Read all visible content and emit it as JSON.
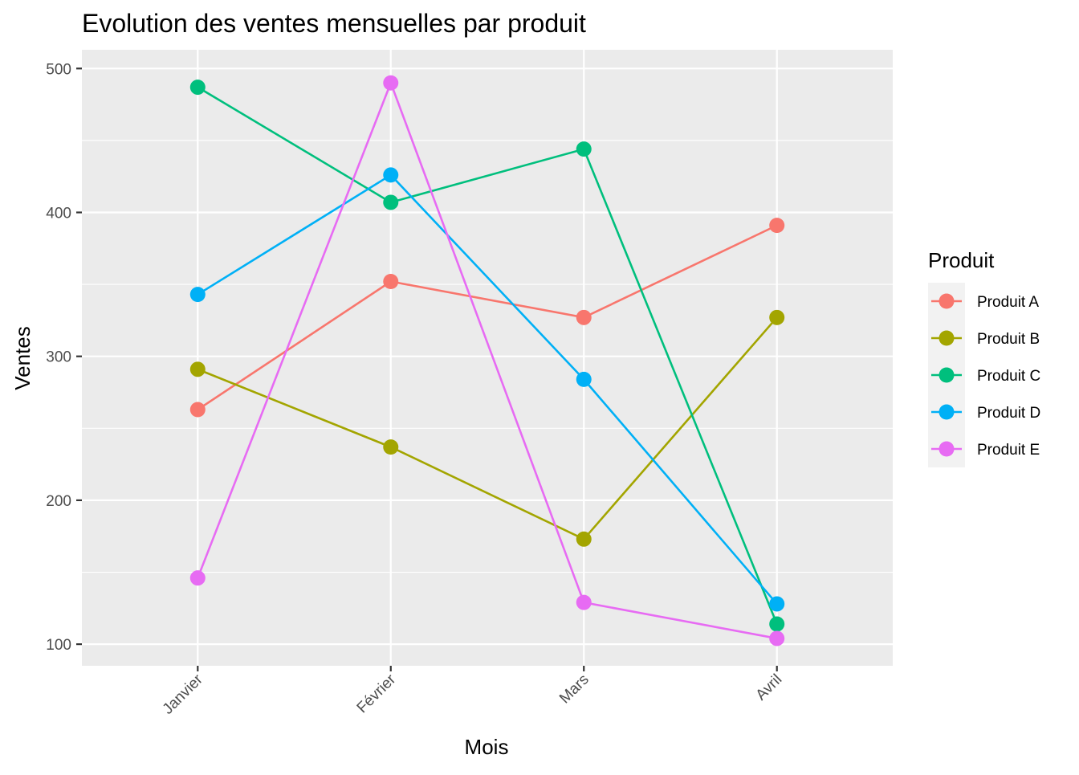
{
  "chart_data": {
    "type": "line",
    "title": "Evolution des ventes mensuelles par produit",
    "xlabel": "Mois",
    "ylabel": "Ventes",
    "categories": [
      "Janvier",
      "Février",
      "Mars",
      "Avril"
    ],
    "ylim": [
      85,
      513
    ],
    "yticks": [
      100,
      200,
      300,
      400,
      500
    ],
    "grid": true,
    "legend": {
      "title": "Produit",
      "placement": "right"
    },
    "series": [
      {
        "name": "Produit A",
        "color": "#F8766D",
        "values": [
          263,
          352,
          327,
          391
        ]
      },
      {
        "name": "Produit B",
        "color": "#A3A500",
        "values": [
          291,
          237,
          173,
          327
        ]
      },
      {
        "name": "Produit C",
        "color": "#00BF7D",
        "values": [
          487,
          407,
          444,
          114
        ]
      },
      {
        "name": "Produit D",
        "color": "#00B0F6",
        "values": [
          343,
          426,
          284,
          128
        ]
      },
      {
        "name": "Produit E",
        "color": "#E76BF3",
        "values": [
          146,
          490,
          129,
          104
        ]
      }
    ],
    "colors": {
      "panel_background": "#EBEBEB",
      "gridline": "#FFFFFF",
      "axis_text": "#4D4D4D",
      "title_text": "#000000",
      "legend_key_background": "#F2F2F2"
    }
  }
}
